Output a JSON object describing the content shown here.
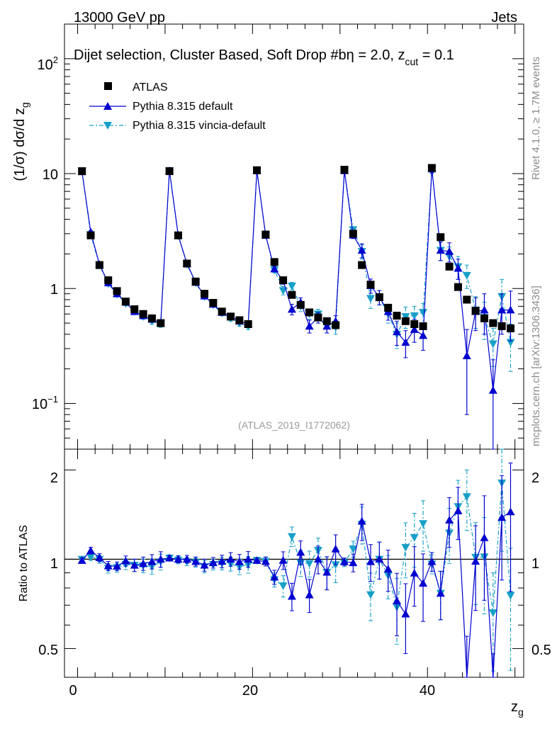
{
  "header": {
    "left": "13000 GeV pp",
    "right": "Jets"
  },
  "plot_title": "Dijet selection, Cluster Based, Soft Drop #b",
  "plot_title_suffix": {
    "eta": "η = 2.0, z",
    "cut": "cut",
    "value": " = 0.1"
  },
  "watermark": "(ATLAS_2019_I1772062)",
  "side_labels": {
    "rivet": "Rivet 4.1.0, ≥ 1.7M events",
    "mcplots": "mcplots.cern.ch [arXiv:1306.3436]"
  },
  "axes": {
    "ylabel_main": "(1/σ) dσ/d z",
    "ylabel_main_sub": "g",
    "ylabel_ratio": "Ratio to ATLAS",
    "xlabel": "z",
    "xlabel_sub": "g",
    "xticks": [
      "0",
      "20",
      "40"
    ],
    "yticks_main": [
      "10",
      "1"
    ],
    "ytick_main_exp": {
      "base100": "10",
      "exp100": "2",
      "base01": "10",
      "exp01": "−1"
    },
    "yticks_ratio": [
      "2",
      "1",
      "0.5"
    ]
  },
  "legend": [
    {
      "label": "ATLAS"
    },
    {
      "label": "Pythia 8.315 default"
    },
    {
      "label": "Pythia 8.315 vincia-default"
    }
  ],
  "colors": {
    "data": "#000000",
    "default": "#0000d0",
    "vincia": "#18a0c8"
  },
  "chart_data": {
    "type": "line",
    "title": "Dijet selection, Cluster Based, Soft Drop #b η = 2.0, z_cut = 0.1",
    "xlabel": "z_g",
    "ylabel": "(1/σ) dσ/d z_g",
    "xlim": [
      -1.5,
      51.0
    ],
    "ylim": [
      0.04,
      200
    ],
    "yscale": "log",
    "ratio_ylim": [
      0.4,
      2.35
    ],
    "ratio_yscale": "log",
    "x": [
      0.5,
      1.5,
      2.5,
      3.5,
      4.5,
      5.5,
      6.5,
      7.5,
      8.5,
      9.5,
      10.5,
      11.5,
      12.5,
      13.5,
      14.5,
      15.5,
      16.5,
      17.5,
      18.5,
      19.5,
      20.5,
      21.5,
      22.5,
      23.5,
      24.5,
      25.5,
      26.5,
      27.5,
      28.5,
      29.5,
      30.5,
      31.5,
      32.5,
      33.5,
      34.5,
      35.5,
      36.5,
      37.5,
      38.5,
      39.5,
      40.5,
      41.5,
      42.5,
      43.5,
      44.5,
      45.5,
      46.5,
      47.5,
      48.5,
      49.5
    ],
    "series": [
      {
        "name": "ATLAS",
        "values": [
          10.5,
          2.9,
          1.6,
          1.18,
          0.95,
          0.77,
          0.66,
          0.6,
          0.55,
          0.5,
          10.5,
          2.9,
          1.65,
          1.15,
          0.9,
          0.75,
          0.63,
          0.57,
          0.53,
          0.49,
          10.7,
          2.95,
          1.7,
          1.18,
          0.88,
          0.72,
          0.62,
          0.56,
          0.52,
          0.48,
          10.8,
          3.0,
          1.6,
          1.08,
          0.84,
          0.68,
          0.58,
          0.52,
          0.49,
          0.47,
          11.2,
          2.8,
          1.55,
          1.03,
          0.8,
          0.64,
          0.55,
          0.5,
          0.47,
          0.45
        ],
        "errors": [
          0,
          0,
          0,
          0,
          0,
          0,
          0,
          0,
          0,
          0,
          0,
          0,
          0,
          0,
          0,
          0,
          0,
          0,
          0,
          0,
          0,
          0,
          0,
          0,
          0,
          0,
          0,
          0,
          0,
          0,
          0,
          0,
          0,
          0,
          0,
          0,
          0,
          0,
          0,
          0,
          0,
          0,
          0,
          0,
          0,
          0,
          0,
          0,
          0,
          0
        ]
      },
      {
        "name": "Pythia 8.315 default",
        "values": [
          10.4,
          3.1,
          1.62,
          1.12,
          0.9,
          0.76,
          0.63,
          0.58,
          0.54,
          0.5,
          10.6,
          2.9,
          1.65,
          1.13,
          0.86,
          0.73,
          0.62,
          0.57,
          0.52,
          0.49,
          10.6,
          2.9,
          1.48,
          1.17,
          0.66,
          0.76,
          0.47,
          0.56,
          0.47,
          0.52,
          10.6,
          2.92,
          2.15,
          1.06,
          0.84,
          0.63,
          0.42,
          0.34,
          0.44,
          0.39,
          11.0,
          2.15,
          2.1,
          1.5,
          0.26,
          0.63,
          0.65,
          0.13,
          0.65,
          0.65
        ],
        "errors": [
          0.2,
          0.08,
          0.05,
          0.04,
          0.03,
          0.03,
          0.03,
          0.03,
          0.03,
          0.03,
          0.2,
          0.08,
          0.05,
          0.04,
          0.04,
          0.03,
          0.03,
          0.03,
          0.03,
          0.03,
          0.2,
          0.1,
          0.08,
          0.08,
          0.07,
          0.07,
          0.06,
          0.06,
          0.06,
          0.06,
          0.3,
          0.2,
          0.3,
          0.15,
          0.12,
          0.1,
          0.1,
          0.09,
          0.1,
          0.1,
          0.8,
          0.4,
          0.4,
          0.3,
          0.18,
          0.2,
          0.25,
          0.11,
          0.25,
          0.3
        ]
      },
      {
        "name": "Pythia 8.315 vincia-default",
        "values": [
          10.5,
          2.95,
          1.6,
          1.1,
          0.89,
          0.74,
          0.63,
          0.57,
          0.52,
          0.49,
          10.6,
          2.88,
          1.62,
          1.12,
          0.85,
          0.72,
          0.61,
          0.55,
          0.5,
          0.47,
          10.6,
          2.9,
          1.45,
          0.96,
          1.05,
          0.7,
          0.6,
          0.6,
          0.47,
          0.46,
          10.5,
          3.25,
          2.1,
          0.82,
          0.84,
          0.6,
          0.4,
          0.57,
          0.58,
          0.62,
          10.8,
          2.15,
          1.9,
          1.55,
          1.3,
          0.65,
          0.56,
          0.33,
          0.85,
          0.34
        ],
        "errors": [
          0.2,
          0.08,
          0.05,
          0.04,
          0.03,
          0.03,
          0.03,
          0.03,
          0.03,
          0.03,
          0.2,
          0.08,
          0.05,
          0.04,
          0.04,
          0.03,
          0.03,
          0.03,
          0.03,
          0.03,
          0.2,
          0.1,
          0.08,
          0.08,
          0.08,
          0.07,
          0.06,
          0.06,
          0.06,
          0.06,
          0.3,
          0.2,
          0.3,
          0.15,
          0.12,
          0.1,
          0.1,
          0.12,
          0.12,
          0.12,
          0.8,
          0.4,
          0.4,
          0.35,
          0.3,
          0.2,
          0.2,
          0.12,
          0.35,
          0.15
        ]
      }
    ]
  }
}
